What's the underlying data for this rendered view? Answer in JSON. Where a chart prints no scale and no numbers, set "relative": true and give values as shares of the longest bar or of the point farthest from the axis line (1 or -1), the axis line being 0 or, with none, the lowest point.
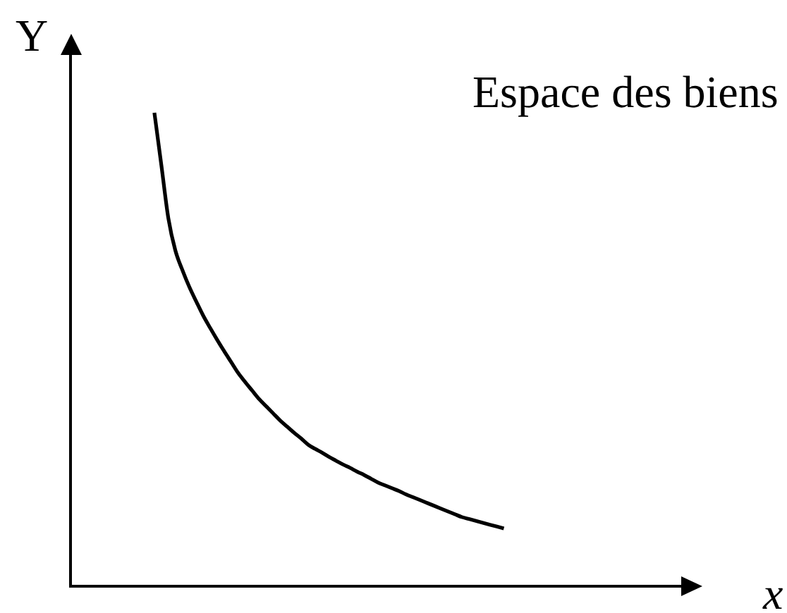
{
  "chart_data": {
    "type": "line",
    "title": "Espace des biens",
    "xlabel": "x",
    "ylabel": "Y",
    "relative": true,
    "tick_labels": false,
    "marker": "none",
    "line_style": "solid",
    "categories": [
      null,
      null,
      null,
      null,
      null,
      null,
      null,
      null,
      null,
      null,
      null,
      null,
      null,
      null,
      null,
      null,
      null,
      null,
      null,
      null,
      null,
      null,
      null,
      null,
      null,
      null,
      null,
      null,
      null,
      null,
      null,
      null,
      null,
      null,
      null,
      null,
      null,
      null,
      null,
      null,
      null,
      null,
      null,
      null,
      null,
      null,
      null,
      null,
      null,
      null,
      null,
      null,
      null,
      null,
      null,
      null,
      null,
      null,
      null,
      null,
      null,
      null,
      null,
      null,
      null,
      null,
      null,
      null,
      null,
      null,
      null,
      null,
      null,
      null,
      null,
      null,
      null,
      null,
      null,
      null,
      null,
      null,
      null,
      null,
      null,
      null,
      null,
      null,
      null,
      null,
      null
    ],
    "series": [
      {
        "color": "#000000",
        "values": [
          null,
          null,
          null,
          null,
          null,
          null,
          null,
          null,
          null,
          null,
          null,
          null,
          1,
          0.889,
          0.777,
          0.709,
          0.668,
          0.632,
          0.601,
          0.571,
          0.545,
          0.52,
          0.496,
          0.473,
          0.45,
          0.431,
          0.413,
          0.395,
          0.38,
          0.365,
          0.35,
          0.337,
          0.324,
          0.312,
          0.299,
          0.29,
          0.282,
          0.273,
          0.265,
          0.257,
          0.25,
          0.242,
          0.235,
          0.227,
          0.219,
          0.213,
          0.207,
          0.201,
          0.194,
          0.188,
          0.182,
          0.176,
          0.17,
          0.164,
          0.158,
          0.152,
          0.146,
          0.142,
          0.138,
          0.134,
          0.13,
          0.126,
          0.122,
          null,
          null,
          null,
          null,
          null,
          null,
          null,
          null,
          null,
          null,
          null,
          null,
          null,
          null,
          null,
          null,
          null,
          null,
          null,
          null,
          null,
          null,
          null,
          null,
          null,
          null,
          null,
          null
        ]
      }
    ]
  }
}
